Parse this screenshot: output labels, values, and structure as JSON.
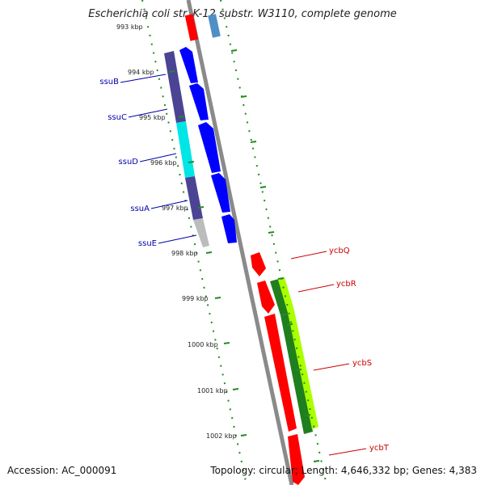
{
  "title": "Escherichia coli str. K-12 substr. W3110, complete genome",
  "accession": "Accession: AC_000091",
  "summary": "Topology: circular; Length: 4,646,332 bp; Genes: 4,383",
  "ticks": [
    "993 kbp",
    "994 kbp",
    "995 kbp",
    "996 kbp",
    "997 kbp",
    "998 kbp",
    "999 kbp",
    "1000 kbp",
    "1001 kbp",
    "1002 kbp"
  ],
  "genes_left": [
    "ssuB",
    "ssuC",
    "ssuD",
    "ssuA",
    "ssuE"
  ],
  "genes_right": [
    "ycbQ",
    "ycbR",
    "ycbS",
    "ycbT"
  ],
  "colors": {
    "forward_gene": "#0000ee",
    "reverse_gene": "#ff0000",
    "backbone": "#888888",
    "tick": "#228b22",
    "left_label": "#0000aa",
    "right_label": "#cc0000"
  }
}
